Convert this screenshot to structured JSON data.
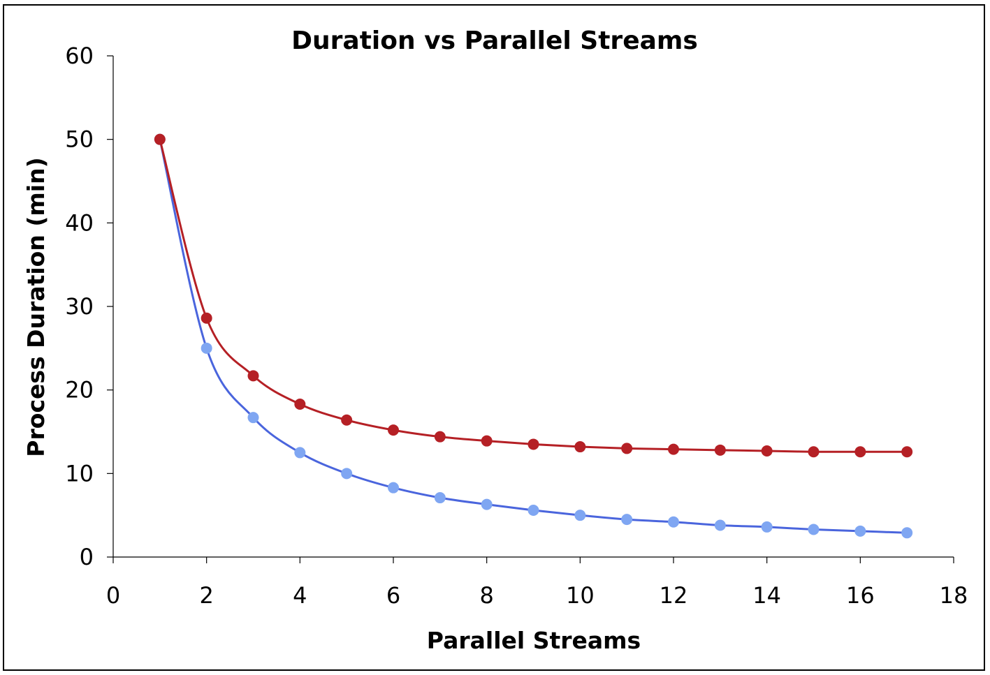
{
  "chart_data": {
    "type": "line",
    "title": "Duration vs Parallel Streams",
    "xlabel": "Parallel Streams",
    "ylabel": "Process Duration (min)",
    "xlim": [
      0,
      18
    ],
    "ylim": [
      0,
      60
    ],
    "xticks": [
      "0",
      "2",
      "4",
      "6",
      "8",
      "10",
      "12",
      "14",
      "16",
      "18"
    ],
    "yticks": [
      "0",
      "10",
      "20",
      "30",
      "40",
      "50",
      "60"
    ],
    "grid": false,
    "legend": "none",
    "x": [
      1,
      2,
      3,
      4,
      5,
      6,
      7,
      8,
      9,
      10,
      11,
      12,
      13,
      14,
      15,
      16,
      17
    ],
    "series": [
      {
        "color": "#b52025",
        "line_color": "#b52025",
        "values": [
          50,
          28.6,
          21.7,
          18.3,
          16.4,
          15.2,
          14.4,
          13.9,
          13.5,
          13.2,
          13.0,
          12.9,
          12.8,
          12.7,
          12.6,
          12.6,
          12.6
        ]
      },
      {
        "color": "#7fa6f2",
        "line_color": "#4a65dd",
        "values": [
          50,
          25.0,
          16.7,
          12.5,
          10.0,
          8.3,
          7.1,
          6.3,
          5.6,
          5.0,
          4.5,
          4.2,
          3.8,
          3.6,
          3.3,
          3.1,
          2.9
        ]
      }
    ]
  }
}
